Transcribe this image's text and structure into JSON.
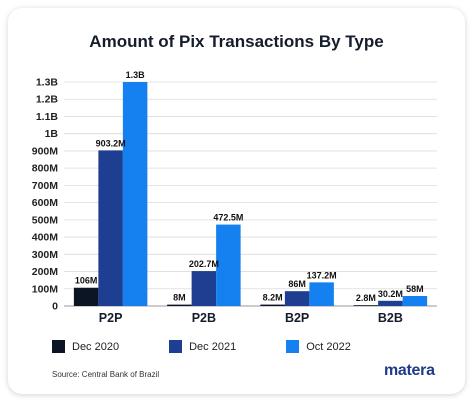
{
  "chart_data": {
    "type": "bar",
    "title": "Amount of Pix Transactions By Type",
    "categories": [
      "P2P",
      "P2B",
      "B2P",
      "B2B"
    ],
    "y_unit": "millions",
    "ylim": [
      0,
      1300
    ],
    "y_ticks": [
      0,
      100,
      200,
      300,
      400,
      500,
      600,
      700,
      800,
      900,
      1000,
      1100,
      1200,
      1300
    ],
    "y_tick_labels": [
      "0",
      "100M",
      "200M",
      "300M",
      "400M",
      "500M",
      "600M",
      "700M",
      "800M",
      "900M",
      "1B",
      "1.1B",
      "1.2B",
      "1.3B"
    ],
    "grid": true,
    "legend_position": "bottom",
    "series": [
      {
        "name": "Dec 2020",
        "color": "#0b1524",
        "values": [
          106,
          8,
          8.2,
          2.8
        ],
        "labels": [
          "106M",
          "8M",
          "8.2M",
          "2.8M"
        ]
      },
      {
        "name": "Dec 2021",
        "color": "#1e3f91",
        "values": [
          903.2,
          202.7,
          86,
          30.2
        ],
        "labels": [
          "903.2M",
          "202.7M",
          "86M",
          "30.2M"
        ]
      },
      {
        "name": "Oct 2022",
        "color": "#1581f0",
        "values": [
          1300,
          472.5,
          137.2,
          58
        ],
        "labels": [
          "1.3B",
          "472.5M",
          "137.2M",
          "58M"
        ]
      }
    ]
  },
  "source": "Source: Central Bank of Brazil",
  "brand": "matera"
}
